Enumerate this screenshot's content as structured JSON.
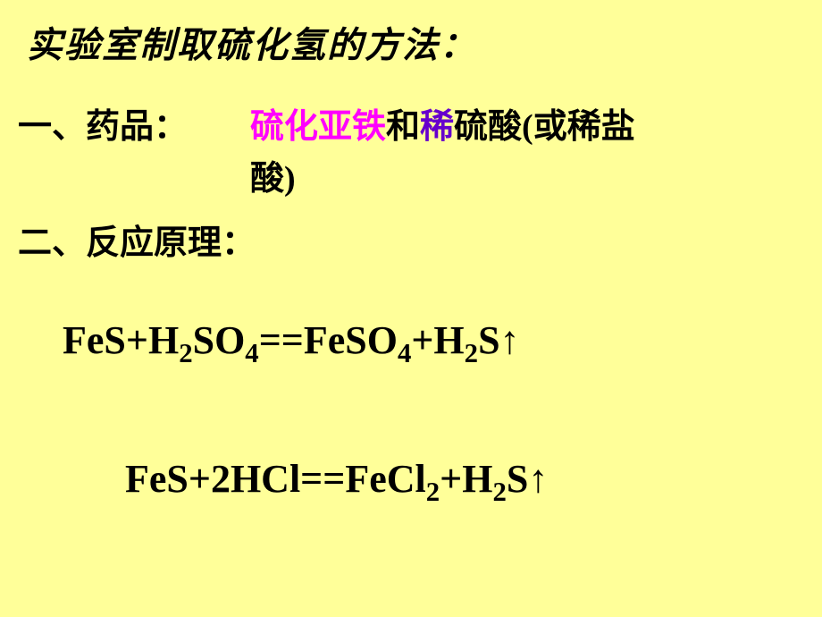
{
  "title": "实验室制取硫化氢的方法：",
  "section1": {
    "label": "一、药品：",
    "reagent_part1": "硫化亚铁",
    "reagent_part2": "和",
    "reagent_part3": "稀",
    "reagent_part4": "硫酸(或稀盐",
    "reagent_line2": "酸)"
  },
  "section2": {
    "label": "二、反应原理："
  },
  "equations": {
    "eq1": {
      "full": "FeS+H₂SO₄==FeSO₄+H₂S↑",
      "parts": [
        "FeS+H",
        "2",
        "SO",
        "4",
        "==FeSO",
        "4",
        "+H",
        "2",
        "S"
      ],
      "arrow": "↑"
    },
    "eq2": {
      "full": "FeS+2HCl==FeCl₂+H₂S↑",
      "parts": [
        "FeS+2HCl==FeCl",
        "2",
        "+H",
        "2",
        "S"
      ],
      "arrow": "↑"
    }
  },
  "colors": {
    "background": "#ffff99",
    "text": "#000000",
    "magenta": "#ff00ff",
    "purple": "#6600cc"
  },
  "typography": {
    "title_fontsize": 40,
    "section_fontsize": 38,
    "equation_fontsize": 44,
    "title_font": "SimSun",
    "equation_font": "Times New Roman"
  }
}
